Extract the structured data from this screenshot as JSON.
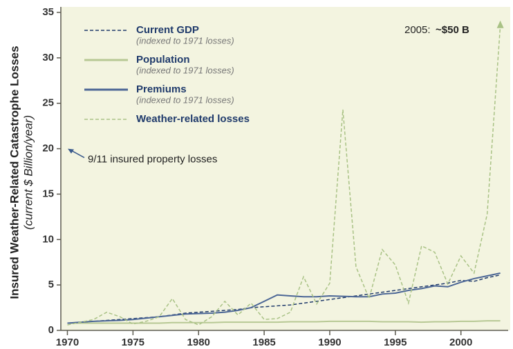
{
  "chart_data": {
    "type": "line",
    "y_label": "Insured Weather-Related Catastrophe Losses",
    "y_label_sub": "(current $ Billion/year)",
    "x": [
      1970,
      1971,
      1972,
      1973,
      1974,
      1975,
      1976,
      1977,
      1978,
      1979,
      1980,
      1981,
      1982,
      1983,
      1984,
      1985,
      1986,
      1987,
      1988,
      1989,
      1990,
      1991,
      1992,
      1993,
      1994,
      1995,
      1996,
      1997,
      1998,
      1999,
      2000,
      2001,
      2002,
      2003
    ],
    "series": [
      {
        "name": "Current GDP",
        "subtitle": "(indexed to 1971 losses)",
        "color": "#1f3a6b",
        "dashed": true,
        "values": [
          0.8,
          0.9,
          1.0,
          1.1,
          1.2,
          1.3,
          1.4,
          1.5,
          1.7,
          1.9,
          2.0,
          2.1,
          2.2,
          2.3,
          2.5,
          2.6,
          2.7,
          2.8,
          3.0,
          3.2,
          3.4,
          3.6,
          3.8,
          4.0,
          4.2,
          4.4,
          4.6,
          4.8,
          5.0,
          5.2,
          5.5,
          5.4,
          5.8,
          6.1
        ]
      },
      {
        "name": "Population",
        "subtitle": "(indexed to 1971 losses)",
        "color": "#b7c894",
        "dashed": false,
        "values": [
          0.8,
          0.8,
          0.8,
          0.8,
          0.8,
          0.8,
          0.8,
          0.8,
          0.85,
          0.85,
          0.85,
          0.85,
          0.9,
          0.9,
          0.9,
          0.9,
          0.9,
          0.95,
          0.95,
          0.95,
          1.0,
          1.0,
          1.0,
          1.0,
          0.95,
          0.95,
          0.95,
          0.9,
          0.95,
          0.95,
          1.0,
          1.0,
          1.05,
          1.05
        ]
      },
      {
        "name": "Premiums",
        "subtitle": "(indexed to 1971 losses)",
        "color": "#4a6595",
        "dashed": false,
        "values": [
          0.8,
          0.9,
          1.0,
          1.05,
          1.1,
          1.2,
          1.35,
          1.5,
          1.65,
          1.8,
          1.85,
          1.9,
          2.0,
          2.2,
          2.5,
          3.2,
          3.9,
          3.8,
          3.7,
          3.7,
          3.8,
          3.75,
          3.7,
          3.7,
          4.0,
          4.1,
          4.4,
          4.6,
          4.9,
          4.8,
          5.3,
          5.7,
          6.0,
          6.3
        ]
      },
      {
        "name": "Weather-related losses",
        "color": "#a9c285",
        "dashed": true,
        "values": [
          0.6,
          0.9,
          1.2,
          2.0,
          1.5,
          0.7,
          1.0,
          1.5,
          3.5,
          1.2,
          0.6,
          1.5,
          3.2,
          1.7,
          3.0,
          1.2,
          1.3,
          2.0,
          5.9,
          2.9,
          5.2,
          24.3,
          7.0,
          3.5,
          8.9,
          7.2,
          3.0,
          9.3,
          8.6,
          5.1,
          8.2,
          6.3,
          12.8,
          33.5
        ]
      }
    ],
    "xlim": [
      1969.5,
      2003.6
    ],
    "xticks": [
      1970,
      1975,
      1980,
      1985,
      1990,
      1995,
      2000
    ],
    "ylim": [
      0,
      35
    ],
    "yticks": [
      0,
      5,
      10,
      15,
      20,
      25,
      30,
      35
    ],
    "annotations": [
      {
        "text": "2005:",
        "bold_text": "~$50 B"
      },
      {
        "text": "9/11 insured property losses",
        "value": 20
      }
    ]
  }
}
